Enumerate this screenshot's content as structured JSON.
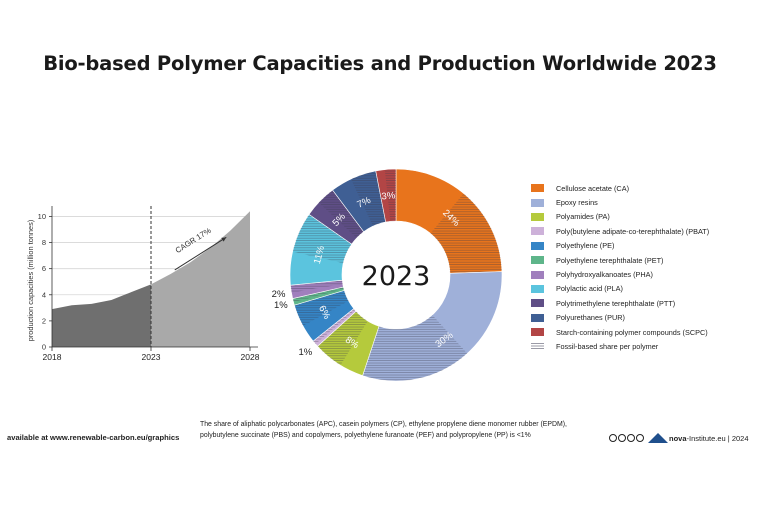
{
  "title": "Bio-based Polymer Capacities and Production Worldwide 2023",
  "colors": {
    "area_history": "#6f6f6f",
    "area_forecast": "#a9a9a9",
    "hatch": "#7f8fa8"
  },
  "chart_data": [
    {
      "type": "area",
      "ylabel": "production capacities (million tonnes)",
      "xlabel": "",
      "x_tick_labels": [
        "2018",
        "2023",
        "2028"
      ],
      "y_tick_labels": [
        "0",
        "2",
        "4",
        "6",
        "8",
        "10"
      ],
      "ylim": [
        0,
        10.8
      ],
      "xlim": [
        2018,
        2028
      ],
      "grid": true,
      "annotation": "CAGR 17%",
      "divider_year": 2023,
      "x": [
        2018,
        2019,
        2020,
        2021,
        2022,
        2023,
        2024,
        2025,
        2026,
        2027,
        2028
      ],
      "series": [
        {
          "values": [
            2.9,
            3.2,
            3.3,
            3.6,
            4.2,
            4.8,
            5.6,
            6.5,
            7.6,
            8.9,
            10.4
          ]
        }
      ]
    },
    {
      "type": "pie",
      "center_label": "2023",
      "legend_position": "right",
      "categories": [
        "Cellulose acetate (CA)",
        "Epoxy resins",
        "Polyamides (PA)",
        "Poly(butylene adipate-co-terephthalate) (PBAT)",
        "Polyethylene (PE)",
        "Polyethylene terephthalate (PET)",
        "Polyhydroxyalkanoates (PHA)",
        "Polylactic acid (PLA)",
        "Polytrimethylene terephthalate (PTT)",
        "Polyurethanes (PUR)",
        "Starch-containing polymer compounds (SCPC)"
      ],
      "hatch_legend": "Fossil-based share per polymer",
      "slices": [
        {
          "name": "Cellulose acetate (CA)",
          "value": 24,
          "label": "24%",
          "color": "#e8741c"
        },
        {
          "name": "Epoxy resins",
          "value": 30,
          "label": "30%",
          "color": "#9fb0d9"
        },
        {
          "name": "Polyamides (PA)",
          "value": 8,
          "label": "8%",
          "color": "#b5ca3c"
        },
        {
          "name": "Poly(butylene adipate-co-terephthalate) (PBAT)",
          "value": 1,
          "label": "1%",
          "color": "#cdb1d9"
        },
        {
          "name": "Polyethylene (PE)",
          "value": 6,
          "label": "6%",
          "color": "#3585c6"
        },
        {
          "name": "Polyethylene terephthalate (PET)",
          "value": 1,
          "label": "1%",
          "color": "#5eb58a"
        },
        {
          "name": "Polyhydroxyalkanoates (PHA)",
          "value": 2,
          "label": "2%",
          "color": "#a07fbd"
        },
        {
          "name": "Polylactic acid (PLA)",
          "value": 11,
          "label": "11%",
          "color": "#5bc4de"
        },
        {
          "name": "Polytrimethylene terephthalate (PTT)",
          "value": 5,
          "label": "5%",
          "color": "#5f4e86"
        },
        {
          "name": "Polyurethanes (PUR)",
          "value": 7,
          "label": "7%",
          "color": "#3f5f94"
        },
        {
          "name": "Starch-containing polymer compounds (SCPC)",
          "value": 3,
          "label": "3%",
          "color": "#b24545"
        }
      ]
    }
  ],
  "footer": {
    "left": "available at www.renewable-carbon.eu/graphics",
    "note_line1": "The share of aliphatic polycarbonates (APC), casein polymers (CP), ethylene propylene diene monomer rubber (EPDM),",
    "note_line2": "polybutylene succinate (PBS)  and copolymers, polyethylene furanoate (PEF) and polypropylene (PP) is <1%",
    "brand": "nova",
    "credit": "-Institute.eu | 2024"
  }
}
